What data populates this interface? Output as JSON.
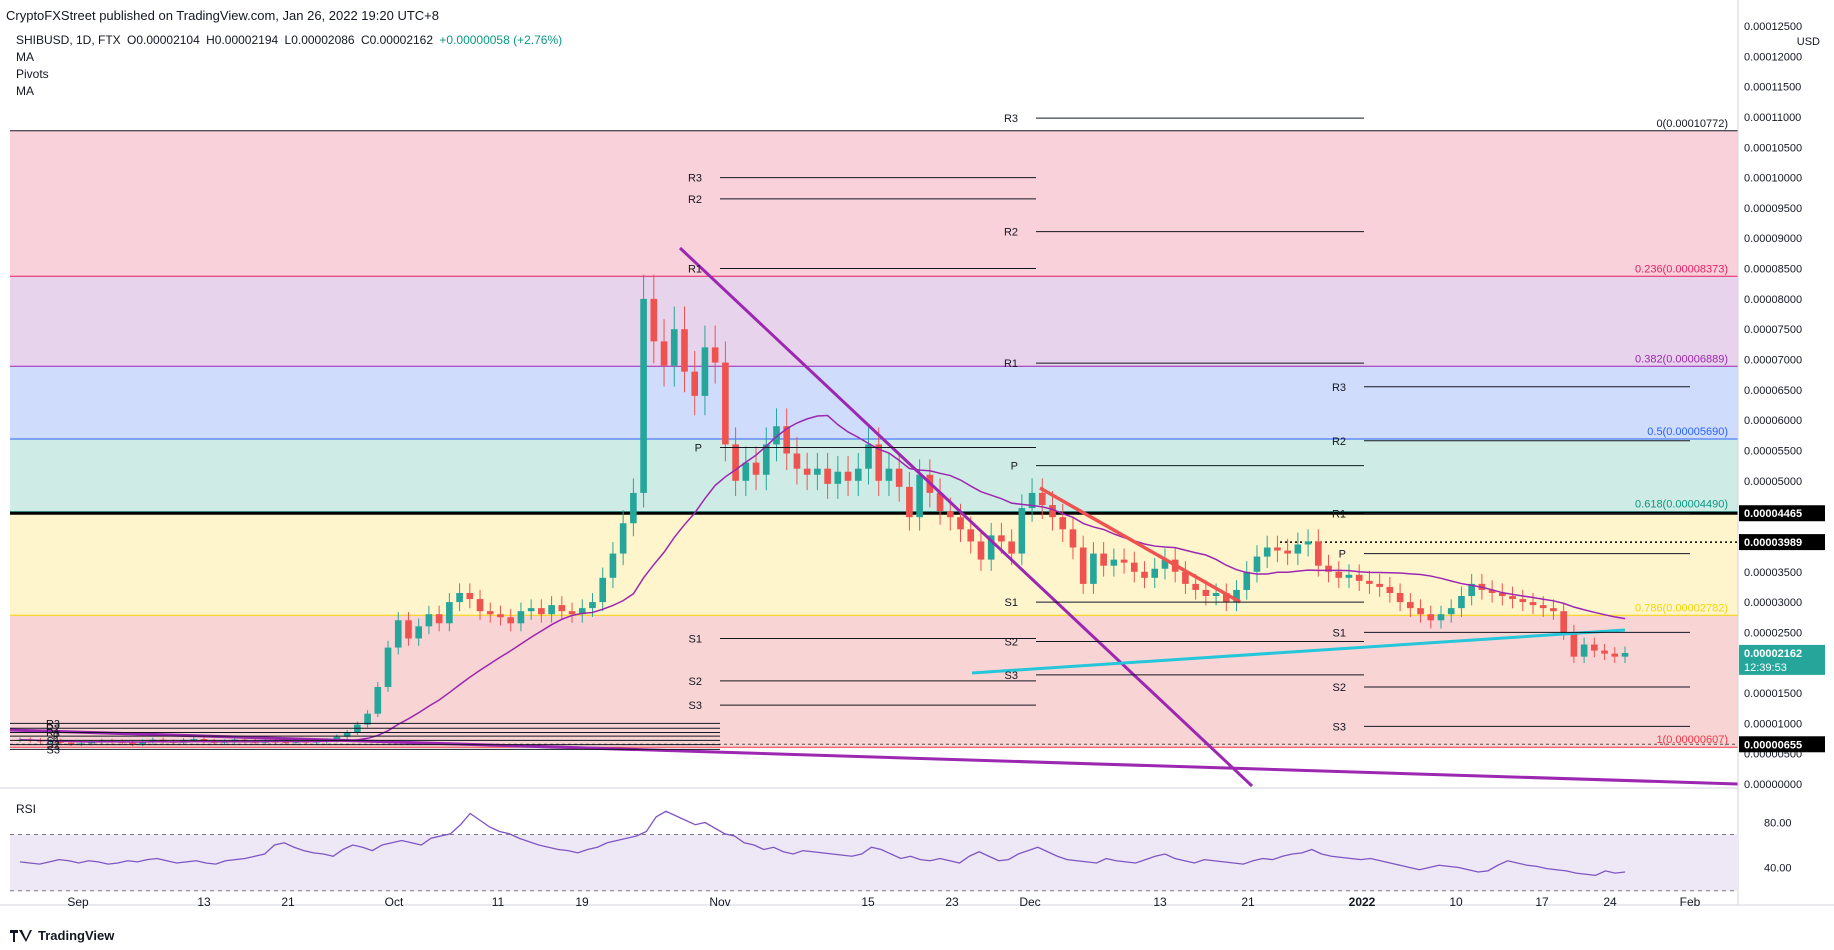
{
  "header": {
    "publisher": "CryptoFXStreet published on TradingView.com, Jan 26, 2022 19:20 UTC+8"
  },
  "legend": {
    "symbol": "SHIBUSD, 1D, FTX",
    "open": "O0.00002104",
    "high": "H0.00002194",
    "low": "L0.00002086",
    "close": "C0.00002162",
    "change": "+0.00000058 (+2.76%)",
    "indicators": [
      "MA",
      "Pivots",
      "MA"
    ]
  },
  "rsi": {
    "label": "RSI",
    "levels": [
      80,
      40
    ],
    "level_labels": [
      "80.00",
      "40.00"
    ],
    "values": [
      45,
      44,
      43,
      45,
      47,
      46,
      44,
      46,
      45,
      43,
      44,
      46,
      45,
      47,
      48,
      46,
      44,
      45,
      46,
      44,
      43,
      46,
      47,
      48,
      50,
      52,
      60,
      62,
      58,
      55,
      53,
      52,
      50,
      56,
      60,
      58,
      55,
      60,
      62,
      64,
      62,
      60,
      66,
      68,
      70,
      78,
      88,
      82,
      76,
      72,
      70,
      66,
      63,
      60,
      58,
      56,
      55,
      53,
      56,
      58,
      62,
      64,
      66,
      68,
      72,
      85,
      90,
      86,
      82,
      78,
      80,
      75,
      70,
      68,
      62,
      60,
      56,
      58,
      54,
      52,
      55,
      54,
      53,
      52,
      51,
      50,
      52,
      58,
      56,
      52,
      48,
      50,
      47,
      46,
      48,
      46,
      44,
      50,
      54,
      50,
      46,
      47,
      52,
      55,
      58,
      54,
      50,
      47,
      46,
      45,
      44,
      48,
      46,
      45,
      44,
      47,
      50,
      52,
      48,
      46,
      44,
      47,
      46,
      45,
      44,
      43,
      46,
      48,
      47,
      50,
      52,
      53,
      56,
      52,
      50,
      49,
      48,
      47,
      48,
      46,
      44,
      42,
      40,
      38,
      40,
      42,
      41,
      40,
      38,
      36,
      37,
      42,
      46,
      44,
      42,
      41,
      39,
      38,
      37,
      35,
      34,
      33,
      37,
      35,
      36
    ]
  },
  "axis": {
    "currency": "USD",
    "price_ticks": [
      "0.00012500",
      "0.00012000",
      "0.00011500",
      "0.00011000",
      "0.00010500",
      "0.00010000",
      "0.00009500",
      "0.00009000",
      "0.00008500",
      "0.00008000",
      "0.00007500",
      "0.00007000",
      "0.00006500",
      "0.00006000",
      "0.00005500",
      "0.00005000",
      "0.00004500",
      "0.00004000",
      "0.00003500",
      "0.00003000",
      "0.00002500",
      "0.00002000",
      "0.00001500",
      "0.00001000",
      "0.00000500",
      "0.00000000"
    ],
    "date_ticks": [
      "Sep",
      "13",
      "21",
      "Oct",
      "11",
      "19",
      "Nov",
      "15",
      "23",
      "Dec",
      "13",
      "21",
      "2022",
      "10",
      "17",
      "24",
      "Feb"
    ],
    "tags": [
      {
        "label": "0.00004465",
        "color": "#000000"
      },
      {
        "label": "0.00003989",
        "color": "#000000"
      },
      {
        "label": "0.00002162",
        "sub": "12:39:53",
        "color": "#26a69a"
      },
      {
        "label": "0.00000655",
        "color": "#000000"
      }
    ]
  },
  "fib_labels": [
    {
      "text": "0(0.00010772)",
      "color": "#131722"
    },
    {
      "text": "0.236(0.00008373)",
      "color": "#e91e63"
    },
    {
      "text": "0.382(0.00006889)",
      "color": "#9c27b0"
    },
    {
      "text": "0.5(0.00005690)",
      "color": "#2962ff"
    },
    {
      "text": "0.618(0.00004490)",
      "color": "#089981"
    },
    {
      "text": "0.786(0.00002782)",
      "color": "#f7d500"
    },
    {
      "text": "1(0.00000607)",
      "color": "#f23645"
    }
  ],
  "pivot_labels": [
    "R3",
    "R2",
    "R1",
    "P",
    "S1",
    "S2",
    "S3"
  ],
  "chart_data": {
    "type": "candlestick",
    "symbol": "SHIBUSD",
    "timeframe": "1D",
    "exchange": "FTX",
    "ylim": [
      0,
      0.000125
    ],
    "x_range": [
      "2021-08-27",
      "2022-02-01"
    ],
    "fib_levels": [
      {
        "ratio": 0,
        "price": 0.00010772
      },
      {
        "ratio": 0.236,
        "price": 8.373e-05
      },
      {
        "ratio": 0.382,
        "price": 6.889e-05
      },
      {
        "ratio": 0.5,
        "price": 5.69e-05
      },
      {
        "ratio": 0.618,
        "price": 4.49e-05
      },
      {
        "ratio": 0.786,
        "price": 2.782e-05
      },
      {
        "ratio": 1,
        "price": 6.07e-06
      }
    ],
    "horizontal_levels": [
      4.465e-05,
      3.989e-05,
      6.55e-06
    ],
    "last_price": 2.162e-05,
    "last_ohlc": {
      "open": 2.104e-05,
      "high": 2.194e-05,
      "low": 2.086e-05,
      "close": 2.162e-05
    },
    "close_approx": [
      7.3e-06,
      7.2e-06,
      7e-06,
      7.1e-06,
      6.8e-06,
      6.6e-06,
      6.7e-06,
      6.9e-06,
      7.1e-06,
      7e-06,
      6.8e-06,
      6.6e-06,
      7e-06,
      7.3e-06,
      7e-06,
      6.8e-06,
      7.2e-06,
      7.4e-06,
      7.1e-06,
      6.8e-06,
      7e-06,
      7.3e-06,
      7.1e-06,
      6.8e-06,
      7e-06,
      6.9e-06,
      6.8e-06,
      7e-06,
      6.9e-06,
      7e-06,
      7.2e-06,
      7.8e-06,
      8.5e-06,
      9.8e-06,
      1.16e-05,
      1.6e-05,
      2.25e-05,
      2.7e-05,
      2.4e-05,
      2.6e-05,
      2.8e-05,
      2.65e-05,
      3e-05,
      3.15e-05,
      3.05e-05,
      2.85e-05,
      2.8e-05,
      2.75e-05,
      2.65e-05,
      2.85e-05,
      2.9e-05,
      2.8e-05,
      2.95e-05,
      2.85e-05,
      2.8e-05,
      2.9e-05,
      3e-05,
      3.4e-05,
      3.8e-05,
      4.3e-05,
      4.8e-05,
      8e-05,
      7.3e-05,
      6.9e-05,
      7.5e-05,
      6.8e-05,
      6.4e-05,
      7.2e-05,
      6.95e-05,
      5.6e-05,
      5e-05,
      5.3e-05,
      5.1e-05,
      5.6e-05,
      5.9e-05,
      5.45e-05,
      5.2e-05,
      5.1e-05,
      5.2e-05,
      4.95e-05,
      5.15e-05,
      5e-05,
      5.2e-05,
      5.6e-05,
      5e-05,
      5.2e-05,
      4.9e-05,
      4.4e-05,
      5.1e-05,
      4.8e-05,
      4.5e-05,
      4.4e-05,
      4.2e-05,
      4e-05,
      3.7e-05,
      4.1e-05,
      4e-05,
      3.8e-05,
      4.55e-05,
      4.8e-05,
      4.6e-05,
      4.4e-05,
      4.2e-05,
      3.9e-05,
      3.3e-05,
      3.8e-05,
      3.6e-05,
      3.7e-05,
      3.65e-05,
      3.5e-05,
      3.4e-05,
      3.55e-05,
      3.7e-05,
      3.5e-05,
      3.3e-05,
      3.2e-05,
      3.1e-05,
      3.15e-05,
      3e-05,
      3.2e-05,
      3.5e-05,
      3.75e-05,
      3.9e-05,
      3.85e-05,
      3.8e-05,
      3.95e-05,
      4e-05,
      3.6e-05,
      3.5e-05,
      3.4e-05,
      3.45e-05,
      3.35e-05,
      3.3e-05,
      3.25e-05,
      3.15e-05,
      3e-05,
      2.9e-05,
      2.8e-05,
      2.7e-05,
      2.8e-05,
      2.9e-05,
      3.1e-05,
      3.3e-05,
      3.2e-05,
      3.15e-05,
      3.1e-05,
      3.05e-05,
      3e-05,
      2.95e-05,
      2.9e-05,
      2.85e-05,
      2.5e-05,
      2.1e-05,
      2.3e-05,
      2.2e-05,
      2.15e-05,
      2.1e-05,
      2.16e-05
    ]
  }
}
